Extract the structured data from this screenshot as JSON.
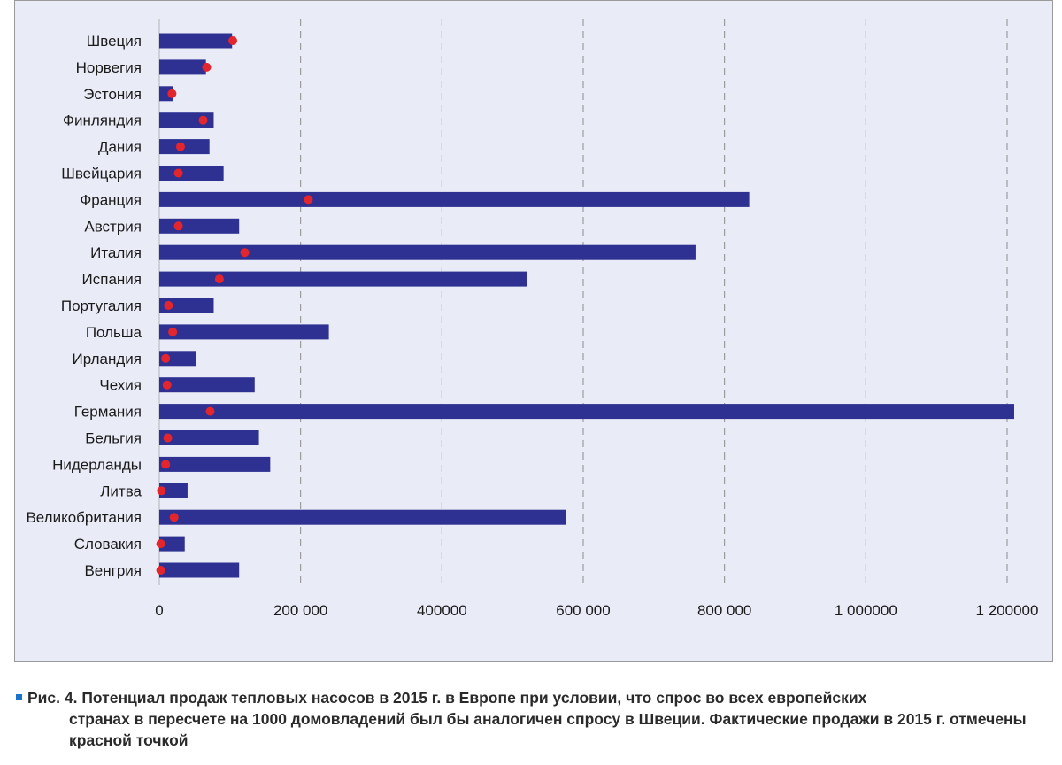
{
  "chart_data": {
    "type": "bar",
    "orientation": "horizontal",
    "categories": [
      "Швеция",
      "Норвегия",
      "Эстония",
      "Финляндия",
      "Дания",
      "Швейцария",
      "Франция",
      "Австрия",
      "Италия",
      "Испания",
      "Португалия",
      "Польша",
      "Ирландия",
      "Чехия",
      "Германия",
      "Бельгия",
      "Нидерланды",
      "Литва",
      "Великобритания",
      "Словакия",
      "Венгрия"
    ],
    "series": [
      {
        "kind": "bar",
        "color": "#2e3192",
        "values": [
          103000,
          66000,
          19000,
          77000,
          71000,
          91000,
          835000,
          113000,
          759000,
          521000,
          77000,
          240000,
          52000,
          135000,
          1210000,
          141000,
          157000,
          40000,
          575000,
          36000,
          113000
        ]
      },
      {
        "kind": "dot",
        "color": "#e3262d",
        "values": [
          104000,
          67000,
          18000,
          62000,
          30000,
          27000,
          211000,
          27000,
          121000,
          85000,
          13000,
          19000,
          9000,
          11000,
          72000,
          12000,
          9000,
          3000,
          21000,
          2000,
          2000
        ]
      }
    ],
    "xlim": [
      0,
      1200000
    ],
    "xticks": [
      0,
      200000,
      400000,
      600000,
      800000,
      1000000,
      1200000
    ],
    "xtick_labels": [
      "0",
      "200 000",
      "400000",
      "600 000",
      "800 000",
      "1 000000",
      "1 200000"
    ],
    "grid": "vertical-dashed"
  },
  "caption": {
    "lead": "Рис. 4. Потенциал продаж тепловых насосов в 2015 г. в Европе при условии, что спрос во всех европейских",
    "rest": "странах в пересчете на 1000 домовладений был бы аналогичен спросу в Швеции. Фактические продажи в 2015 г. отмечены красной точкой"
  }
}
